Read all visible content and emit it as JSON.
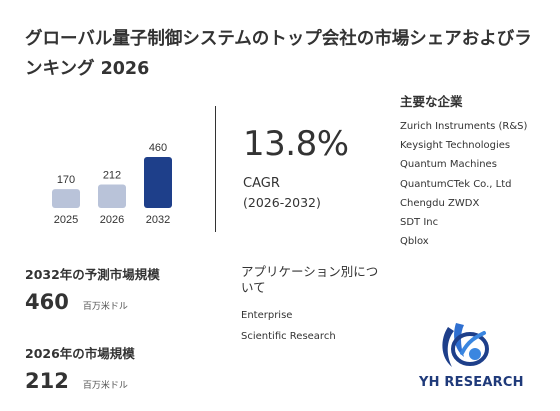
{
  "title": "グローバル量子制御システムのトップ会社の市場シェアおよびランキング 2026",
  "chart_data": {
    "type": "bar",
    "categories": [
      "2025",
      "2026",
      "2032"
    ],
    "values": [
      170,
      212,
      460
    ],
    "colors": [
      "#b9c3d9",
      "#b9c3d9",
      "#1e3f8a"
    ]
  },
  "cagr": {
    "value": "13.8%",
    "label": "CAGR",
    "range": "(2026-2032)"
  },
  "key_players": {
    "title": "主要な企業",
    "items": [
      "Zurich Instruments (R&S)",
      "Keysight Technologies",
      "Quantum Machines",
      "QuantumCTek Co., Ltd",
      "Chengdu ZWDX",
      "SDT Inc",
      "Qblox"
    ]
  },
  "forecast": {
    "label": "2032年の予測市場規模",
    "value": "460",
    "unit": "百万米ドル"
  },
  "current": {
    "label": "2026年の市場規模",
    "value": "212",
    "unit": "百万米ドル"
  },
  "applications": {
    "title": "アプリケーション別について",
    "items": [
      "Enterprise",
      "Scientific Research"
    ]
  },
  "logo": {
    "text": "YH RESEARCH"
  }
}
